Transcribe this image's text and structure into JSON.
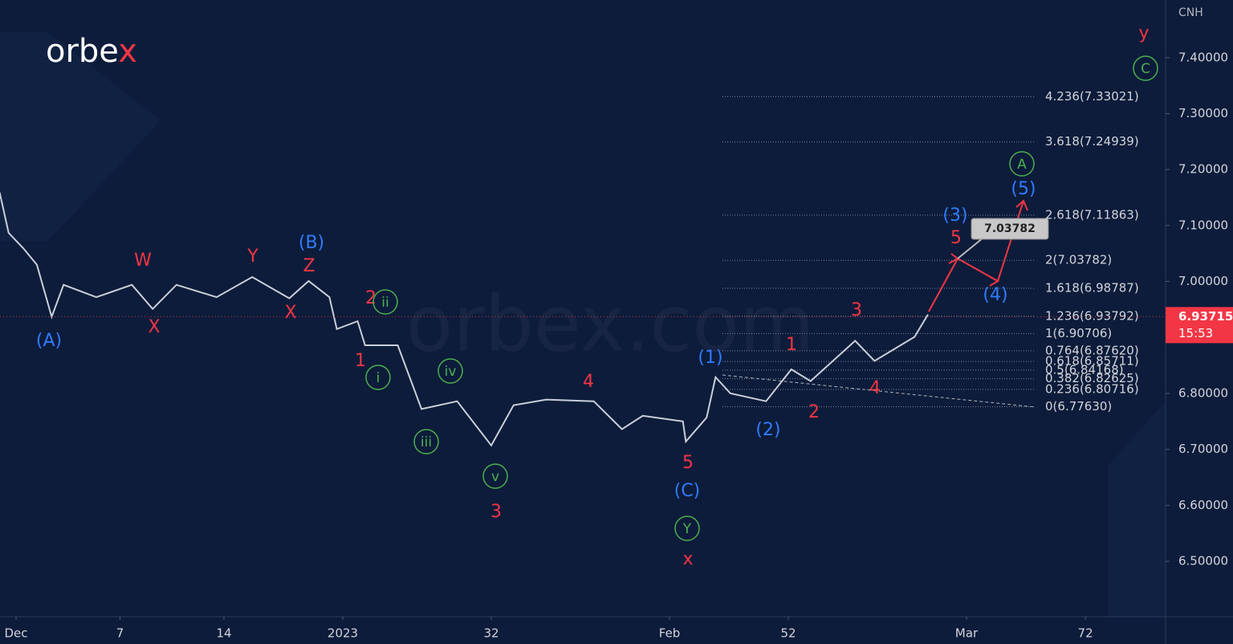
{
  "logo": "orbe",
  "logo_accent": "x",
  "watermark": "orbex.com",
  "chart_data": {
    "type": "line",
    "y_axis_unit": "CNH",
    "x": [
      -1.1,
      -0.5,
      0.5,
      1.4,
      2.4,
      3.2,
      5.4,
      7.8,
      9.2,
      10.8,
      13.5,
      15.9,
      18.4,
      19.7,
      21.1,
      21.6,
      23.0,
      23.5,
      25.7,
      27.3,
      29.7,
      32.0,
      33.5,
      35.7,
      38.9,
      40.8,
      42.2,
      44.9,
      45.1,
      46.5,
      47.1,
      48.1,
      50.5,
      52.2,
      53.5,
      56.5,
      57.8,
      60.5,
      61.4
    ],
    "values": [
      7.159,
      7.087,
      7.059,
      7.03,
      6.937,
      6.994,
      6.972,
      6.994,
      6.951,
      6.994,
      6.972,
      7.008,
      6.97,
      7.001,
      6.972,
      6.915,
      6.929,
      6.886,
      6.886,
      6.772,
      6.786,
      6.707,
      6.779,
      6.789,
      6.786,
      6.736,
      6.76,
      6.75,
      6.714,
      6.757,
      6.829,
      6.8,
      6.786,
      6.843,
      6.822,
      6.894,
      6.858,
      6.901,
      6.941
    ],
    "color": "#c9ced9",
    "xlim": [
      -1.08,
      77.4
    ],
    "xticks": [
      {
        "value": 0,
        "label": "Dec"
      },
      7,
      14,
      {
        "value": 22,
        "label": "2023"
      },
      32,
      {
        "value": 44,
        "label": "Feb"
      },
      52,
      {
        "value": 64,
        "label": "Mar"
      },
      72
    ],
    "ylim": [
      6.401,
      7.503
    ],
    "yticks": [
      {
        "value": 6.5,
        "label": "6.50000"
      },
      {
        "value": 6.6,
        "label": "6.60000"
      },
      {
        "value": 6.7,
        "label": "6.70000"
      },
      {
        "value": 6.8,
        "label": "6.80000"
      },
      {
        "value": 6.9,
        "label": "6.90000"
      },
      {
        "value": 7.0,
        "label": "7.00000"
      },
      {
        "value": 7.1,
        "label": "7.10000"
      },
      {
        "value": 7.2,
        "label": "7.20000"
      },
      {
        "value": 7.3,
        "label": "7.30000"
      },
      {
        "value": 7.4,
        "label": "7.40000"
      }
    ],
    "last_price": 6.93715,
    "countdown": "15:53",
    "callout": 7.03782,
    "fib_levels": [
      {
        "value": 7.33021,
        "label": "4.236(7.33021)"
      },
      {
        "value": 7.24939,
        "label": "3.618(7.24939)"
      },
      {
        "value": 7.11863,
        "label": "2.618(7.11863)"
      },
      {
        "value": 7.03782,
        "label": "2(7.03782)"
      },
      {
        "value": 6.98787,
        "label": "1.618(6.98787)"
      },
      {
        "value": 6.93792,
        "label": "1.236(6.93792)"
      },
      {
        "value": 6.90706,
        "label": "1(6.90706)"
      },
      {
        "value": 6.8762,
        "label": "0.764(6.87620)"
      },
      {
        "value": 6.85711,
        "label": "0.618(6.85711)"
      },
      {
        "value": 6.84168,
        "label": "0.5(6.84168)"
      },
      {
        "value": 6.82625,
        "label": "0.382(6.82625)"
      },
      {
        "value": 6.80716,
        "label": "0.236(6.80716)"
      },
      {
        "value": 6.7763,
        "label": "0(6.77630)"
      }
    ],
    "red_labels": [
      "y",
      "W",
      "Y",
      "Z",
      "X",
      "X",
      "2",
      "1",
      "4",
      "3",
      "5",
      "x",
      "1",
      "2",
      "3",
      "4",
      "5"
    ],
    "blue_labels": [
      "(A)",
      "(B)",
      "(1)",
      "(2)",
      "(C)",
      "(3)",
      "(4)",
      "(5)"
    ],
    "green_circled_labels": [
      "C",
      "A",
      "ii",
      "i",
      "iv",
      "iii",
      "v",
      "Y"
    ],
    "colors": {
      "red": "#f23645",
      "blue": "#2f7bff",
      "green": "#4caf50",
      "background": "#0d1c3a"
    }
  }
}
